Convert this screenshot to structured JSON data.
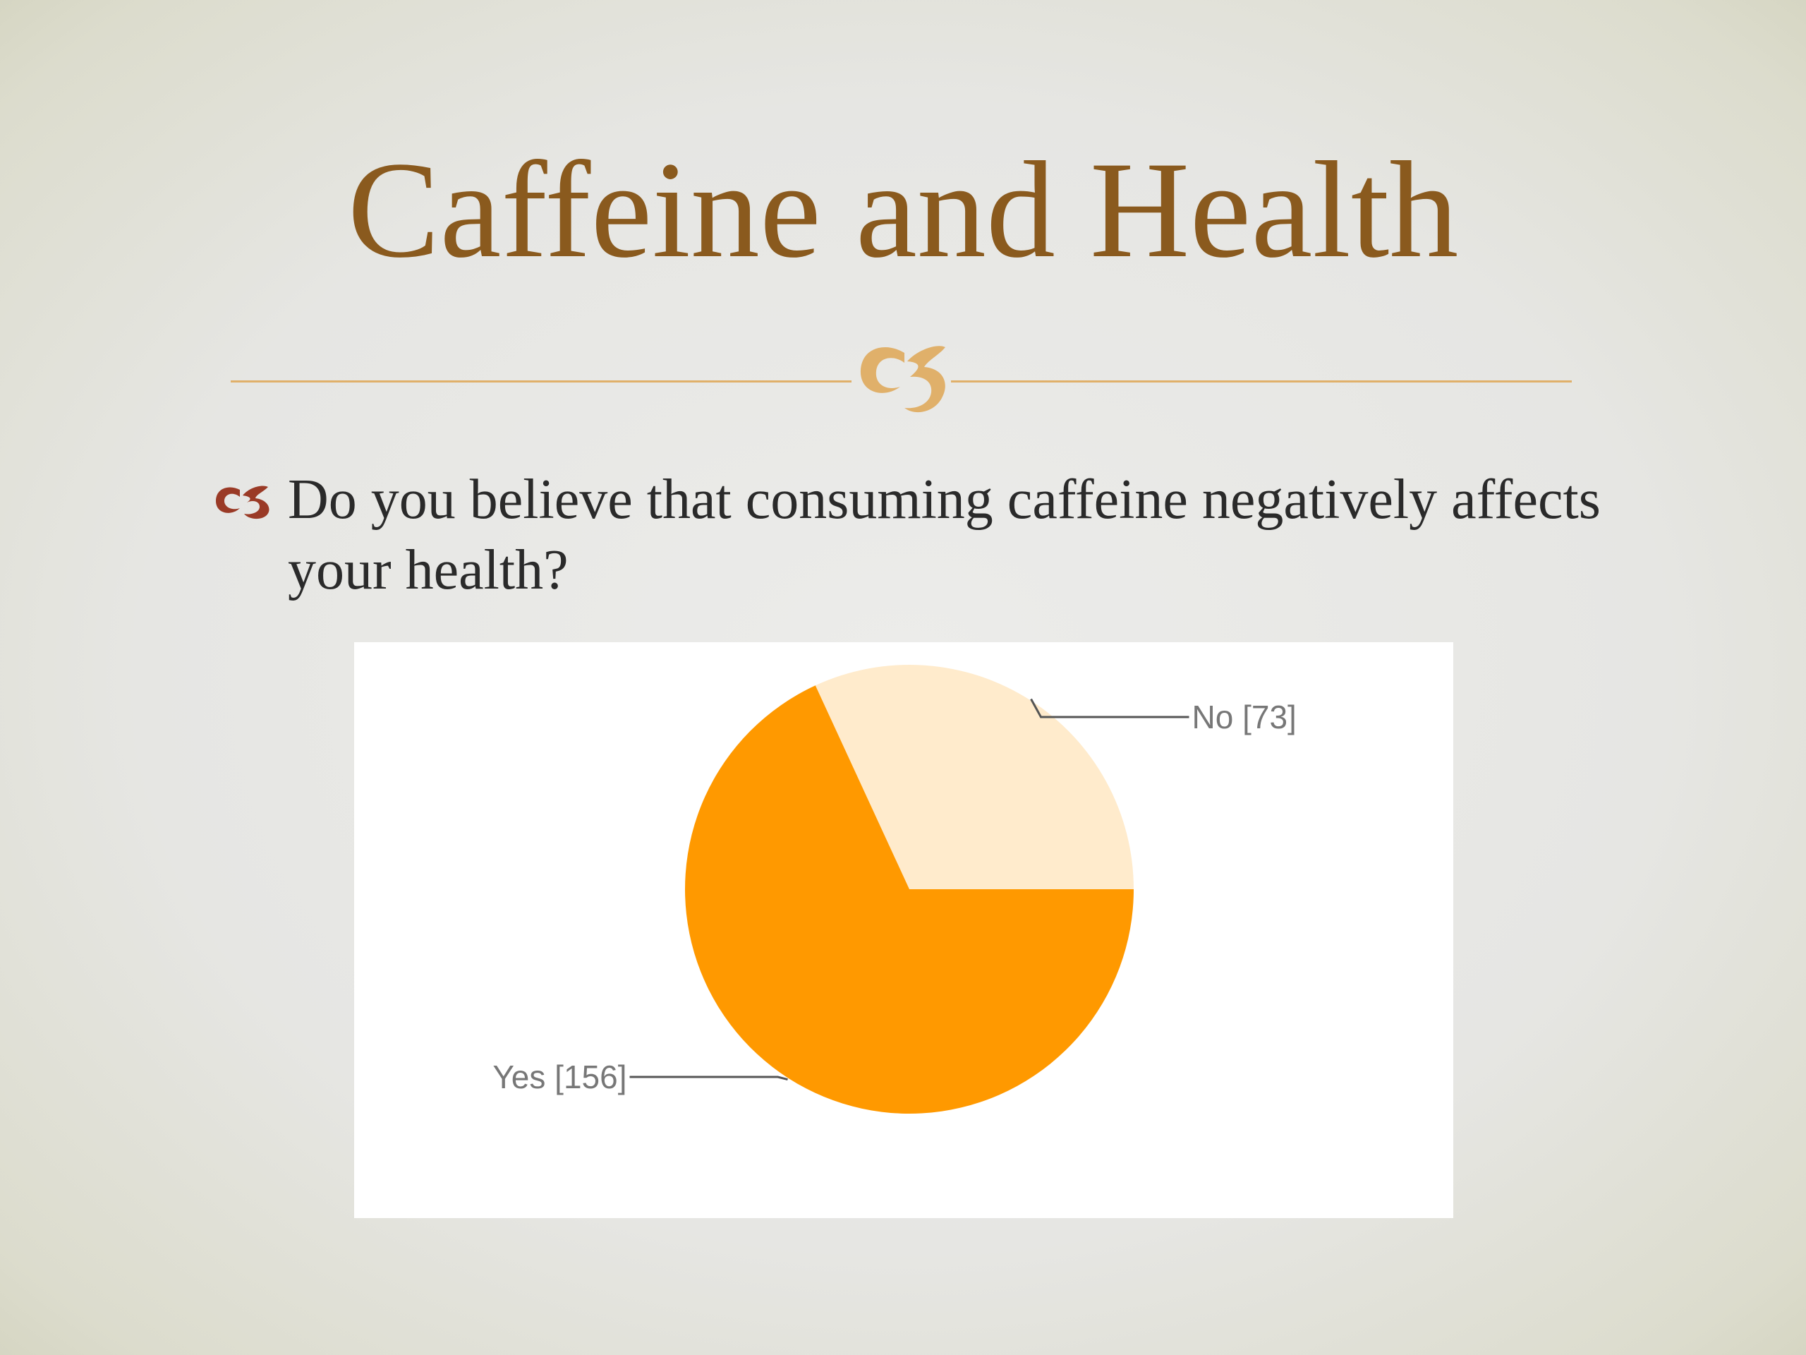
{
  "slide": {
    "title": "Caffeine and Health",
    "question": "Do you believe that consuming caffeine negatively affects your health?",
    "colors": {
      "title": "#8a5a1e",
      "ornament": "#e0b06a",
      "bullet": "#9a3a26",
      "text": "#2a2a2a"
    }
  },
  "chart_data": {
    "type": "pie",
    "title": "",
    "slices": [
      {
        "label": "No",
        "value": 73,
        "display": "No [73]",
        "color": "#ffebcc"
      },
      {
        "label": "Yes",
        "value": 156,
        "display": "Yes [156]",
        "color": "#ff9900"
      }
    ],
    "legend": "none",
    "label_color": "#777777"
  }
}
